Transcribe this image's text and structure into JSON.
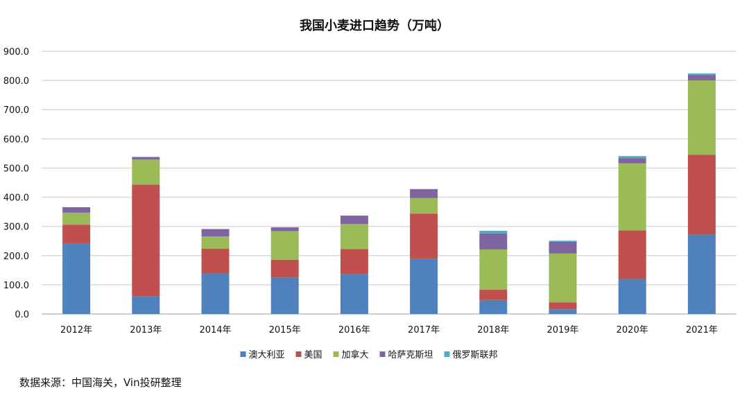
{
  "chart_data": {
    "type": "bar",
    "stacked": true,
    "title": "我国小麦进口趋势（万吨）",
    "xlabel": "",
    "ylabel": "",
    "ylim": [
      0,
      900
    ],
    "yticks": [
      "0.0",
      "100.0",
      "200.0",
      "300.0",
      "400.0",
      "500.0",
      "600.0",
      "700.0",
      "800.0",
      "900.0"
    ],
    "grid": true,
    "legend_position": "bottom",
    "categories": [
      "2012年",
      "2013年",
      "2014年",
      "2015年",
      "2016年",
      "2017年",
      "2018年",
      "2019年",
      "2020年",
      "2021年"
    ],
    "series": [
      {
        "name": "澳大利亚",
        "color": "#4f81bd",
        "values": [
          242,
          60,
          139,
          125,
          136,
          188,
          48,
          16,
          120,
          272
        ]
      },
      {
        "name": "美国",
        "color": "#c0504d",
        "values": [
          64,
          383,
          85,
          61,
          86,
          156,
          35,
          24,
          166,
          273
        ]
      },
      {
        "name": "加拿大",
        "color": "#9bbb59",
        "values": [
          41,
          86,
          42,
          98,
          86,
          53,
          138,
          167,
          230,
          255
        ]
      },
      {
        "name": "哈萨克斯坦",
        "color": "#8064a2",
        "values": [
          19,
          9,
          25,
          13,
          29,
          31,
          55,
          40,
          18,
          19
        ]
      },
      {
        "name": "俄罗斯联邦",
        "color": "#4bacc6",
        "values": [
          0,
          0,
          0,
          0,
          0,
          0,
          9,
          4,
          7,
          5
        ]
      }
    ]
  },
  "source": "数据来源：中国海关，Vin投研整理"
}
